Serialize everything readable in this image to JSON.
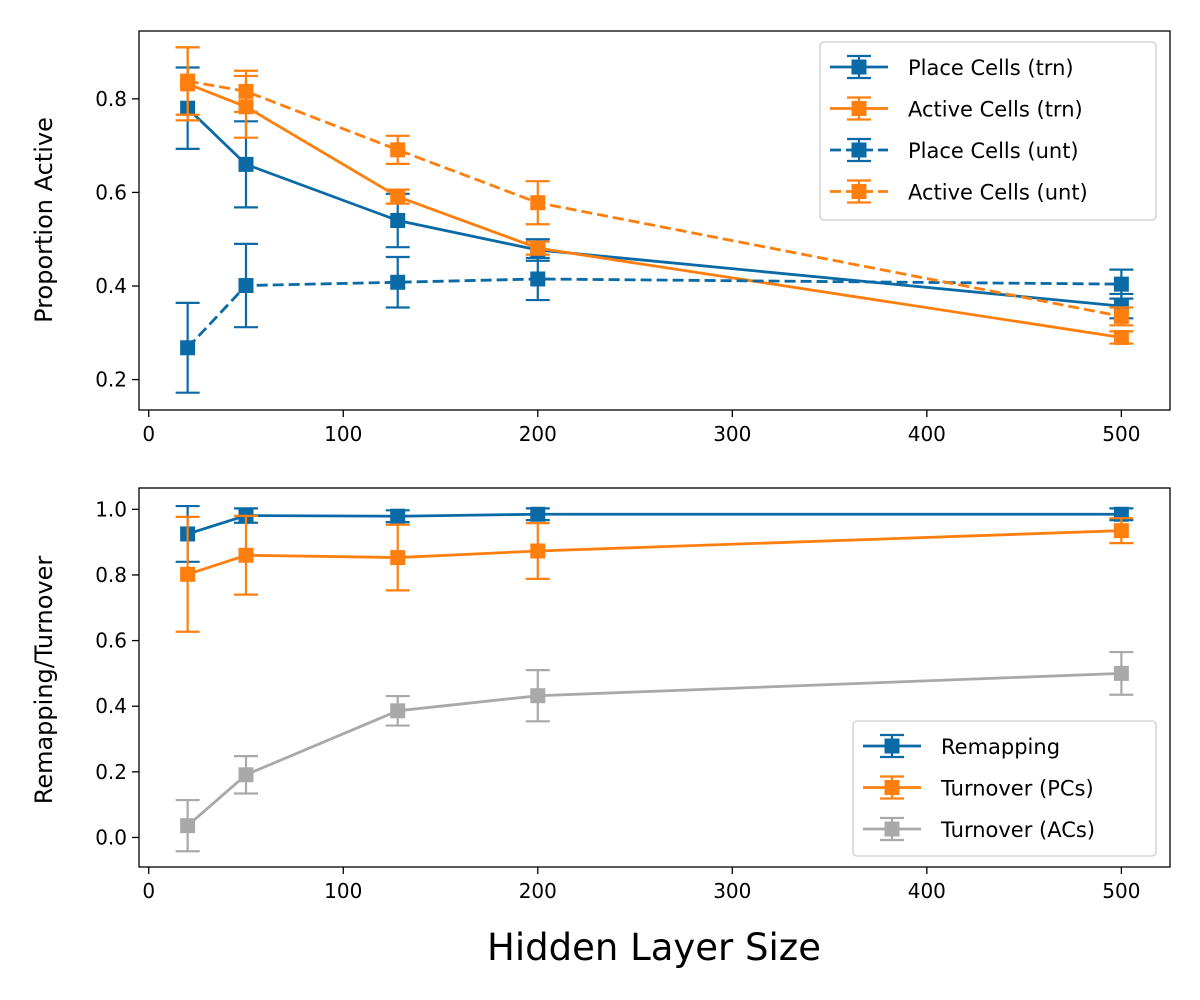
{
  "colors": {
    "blue": "#0a6aa6",
    "orange": "#ff7f0e",
    "gray": "#a9a9a9"
  },
  "chart_data": [
    {
      "type": "line",
      "xlabel": "",
      "ylabel": "Proportion Active",
      "xlim": [
        -5,
        525
      ],
      "ylim": [
        0.135,
        0.945
      ],
      "xticks": [
        "0",
        "100",
        "200",
        "300",
        "400",
        "500"
      ],
      "yticks": [
        "0.2",
        "0.4",
        "0.6",
        "0.8"
      ],
      "grid": false,
      "legend_position": "top-right",
      "x": [
        20,
        50,
        128,
        200,
        500
      ],
      "series": [
        {
          "name": "Place Cells (trn)",
          "color": "blue",
          "linestyle": "solid",
          "values": [
            0.78,
            0.66,
            0.54,
            0.477,
            0.357
          ],
          "errors": [
            0.087,
            0.092,
            0.057,
            0.023,
            0.026
          ]
        },
        {
          "name": "Active Cells (trn)",
          "color": "orange",
          "linestyle": "solid",
          "values": [
            0.832,
            0.783,
            0.591,
            0.481,
            0.29
          ],
          "errors": [
            0.078,
            0.066,
            0.015,
            0.014,
            0.013
          ]
        },
        {
          "name": "Place Cells (unt)",
          "color": "blue",
          "linestyle": "dashed",
          "values": [
            0.268,
            0.401,
            0.408,
            0.415,
            0.404
          ],
          "errors": [
            0.096,
            0.089,
            0.054,
            0.045,
            0.031
          ]
        },
        {
          "name": "Active Cells (unt)",
          "color": "orange",
          "linestyle": "dashed",
          "values": [
            0.838,
            0.816,
            0.691,
            0.578,
            0.335
          ],
          "errors": [
            0.072,
            0.044,
            0.03,
            0.046,
            0.019
          ]
        }
      ]
    },
    {
      "type": "line",
      "xlabel": "Hidden Layer Size",
      "ylabel": "Remapping/Turnover",
      "xlim": [
        -5,
        525
      ],
      "ylim": [
        -0.09,
        1.065
      ],
      "xticks": [
        "0",
        "100",
        "200",
        "300",
        "400",
        "500"
      ],
      "yticks": [
        "0.0",
        "0.2",
        "0.4",
        "0.6",
        "0.8",
        "1.0"
      ],
      "grid": false,
      "legend_position": "bottom-right",
      "x": [
        20,
        50,
        128,
        200,
        500
      ],
      "series": [
        {
          "name": "Remapping",
          "color": "blue",
          "linestyle": "solid",
          "values": [
            0.925,
            0.981,
            0.979,
            0.985,
            0.985
          ],
          "errors": [
            0.085,
            0.022,
            0.018,
            0.018,
            0.018
          ]
        },
        {
          "name": "Turnover (PCs)",
          "color": "orange",
          "linestyle": "solid",
          "values": [
            0.802,
            0.86,
            0.853,
            0.873,
            0.935
          ],
          "errors": [
            0.175,
            0.12,
            0.1,
            0.085,
            0.038
          ]
        },
        {
          "name": "Turnover (ACs)",
          "color": "gray",
          "linestyle": "solid",
          "values": [
            0.036,
            0.191,
            0.386,
            0.432,
            0.5
          ],
          "errors": [
            0.078,
            0.057,
            0.045,
            0.078,
            0.065
          ]
        }
      ]
    }
  ]
}
